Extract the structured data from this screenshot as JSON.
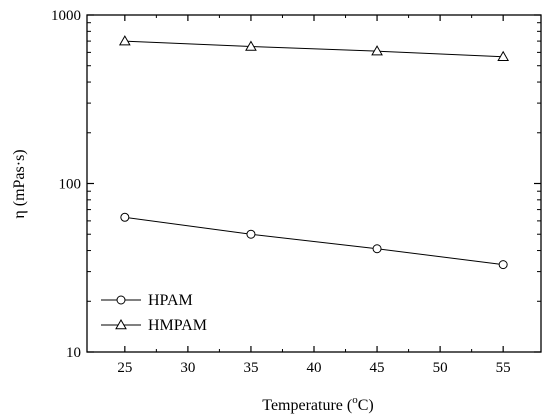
{
  "chart_data": {
    "type": "line",
    "title": "",
    "xlabel": "Temperature (",
    "xlabel_sup": "o",
    "xlabel_unit": "C)",
    "ylabel": "η (mPas·s)",
    "x": [
      25,
      35,
      45,
      55
    ],
    "xlim": [
      22,
      58
    ],
    "x_ticks": [
      25,
      30,
      35,
      40,
      45,
      50,
      55
    ],
    "x_tick_labels": [
      "25",
      "30",
      "35",
      "40",
      "45",
      "50",
      "55"
    ],
    "yscale": "log",
    "ylim": [
      10,
      1000
    ],
    "y_ticks": [
      10,
      100,
      1000
    ],
    "y_tick_labels": [
      "10",
      "100",
      "1000"
    ],
    "grid": false,
    "legend_position": "bottom-left",
    "series": [
      {
        "name": "HPAM",
        "marker": "circle",
        "color": "#000000",
        "values": [
          63,
          50,
          41,
          33
        ]
      },
      {
        "name": "HMPAM",
        "marker": "triangle",
        "color": "#000000",
        "values": [
          700,
          650,
          610,
          565
        ]
      }
    ]
  }
}
